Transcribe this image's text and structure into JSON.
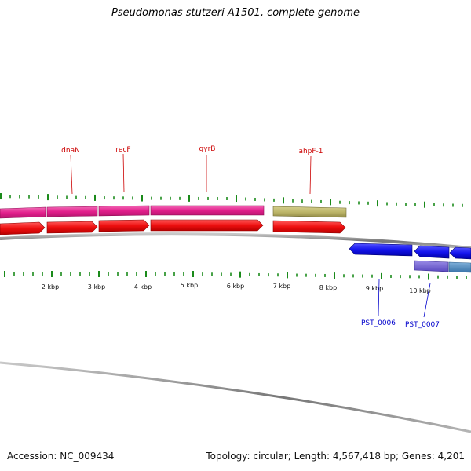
{
  "title": "Pseudomonas stutzeri A1501, complete genome",
  "footer": {
    "accession": "Accession: NC_009434",
    "stats": "Topology: circular; Length: 4,567,418 bp; Genes: 4,201"
  },
  "map": {
    "topology": "circular",
    "scale_labels": [
      "2 kbp",
      "3 kbp",
      "4 kbp",
      "5 kbp",
      "6 kbp",
      "7 kbp",
      "8 kbp",
      "9 kbp",
      "10 kbp"
    ],
    "gene_labels": [
      {
        "name": "dnaN",
        "strand": "forward"
      },
      {
        "name": "recF",
        "strand": "forward"
      },
      {
        "name": "gyrB",
        "strand": "forward"
      },
      {
        "name": "ahpF-1",
        "strand": "forward"
      },
      {
        "name": "PST_0006",
        "strand": "reverse"
      },
      {
        "name": "PST_0007",
        "strand": "reverse"
      }
    ],
    "colors": {
      "forward_cds": "#ee1111",
      "forward_gene_pink": "#e8359a",
      "forward_gene_khaki": "#bdb76b",
      "reverse_cds": "#1a1aee",
      "reverse_gene_purple": "#6a5acd",
      "reverse_gene_steel": "#4682b4",
      "ticks": "#1a8a1a",
      "label_forward": "#cc0000",
      "label_reverse": "#0000cc"
    }
  }
}
